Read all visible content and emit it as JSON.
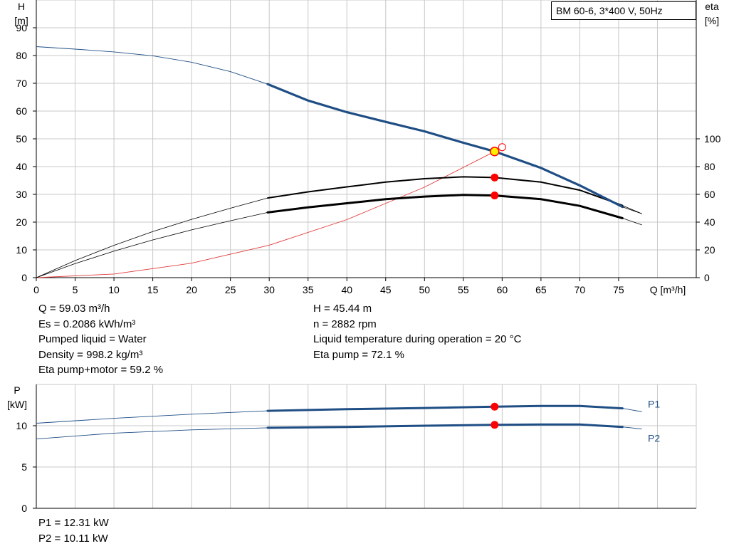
{
  "title": "BM 60-6, 3*400 V, 50Hz",
  "info": {
    "left": [
      "Q = 59.03 m³/h",
      "Es = 0.2086 kWh/m³",
      "Pumped liquid = Water",
      "Density = 998.2 kg/m³",
      "Eta pump+motor = 59.2 %"
    ],
    "right": [
      "H = 45.44 m",
      "n = 2882 rpm",
      "Liquid temperature during operation = 20 °C",
      "Eta pump = 72.1 %"
    ],
    "power": [
      "P1 = 12.31 kW",
      "P2 = 10.11 kW"
    ]
  },
  "colors": {
    "curve": "#1f4e85",
    "system": "#e23b3b",
    "point": "#ff0000",
    "duty": "#ffee00",
    "grid": "#c8c8c8"
  },
  "chart_data": [
    {
      "type": "line",
      "name": "performance",
      "xlabel": "Q [m³/h]",
      "ylabel": [
        "H",
        "[m]"
      ],
      "y2label": [
        "eta",
        "[%]"
      ],
      "xlim": [
        0,
        85
      ],
      "ylim": [
        0,
        100
      ],
      "y2lim": [
        0,
        200
      ],
      "x_ticks": [
        0,
        5,
        10,
        15,
        20,
        25,
        30,
        35,
        40,
        45,
        50,
        55,
        60,
        65,
        70,
        75
      ],
      "y_ticks": [
        0,
        10,
        20,
        30,
        40,
        50,
        60,
        70,
        80,
        90
      ],
      "y2_ticks": [
        0,
        20,
        40,
        60,
        80,
        100
      ],
      "grid": true,
      "operating_range": [
        29.8,
        75.5
      ],
      "head_curve": {
        "x": [
          0,
          5,
          10,
          15,
          20,
          25,
          29.8,
          35,
          40,
          45,
          50,
          55,
          59.03,
          65,
          70,
          75.5
        ],
        "y": [
          83.2,
          82.3,
          81.3,
          79.9,
          77.6,
          74.2,
          69.7,
          63.8,
          59.6,
          56.1,
          52.7,
          48.6,
          45.44,
          39.5,
          33.2,
          25.5
        ]
      },
      "eta_pump_curve": {
        "x": [
          0,
          5,
          10,
          15,
          20,
          25,
          29.8,
          35,
          40,
          45,
          50,
          55,
          59.03,
          65,
          70,
          75.5,
          78
        ],
        "y": [
          0,
          12.3,
          23.3,
          33.2,
          42.0,
          50.0,
          57.4,
          61.8,
          65.4,
          68.8,
          71.3,
          72.6,
          72.1,
          68.8,
          63.0,
          52.0,
          46.0
        ]
      },
      "eta_total_curve": {
        "x": [
          0,
          5,
          10,
          15,
          20,
          25,
          29.8,
          35,
          40,
          45,
          50,
          55,
          59.03,
          65,
          70,
          75.5,
          78
        ],
        "y": [
          0,
          10.1,
          19.1,
          27.2,
          34.4,
          41.0,
          47.0,
          50.6,
          53.6,
          56.5,
          58.4,
          59.6,
          59.2,
          56.5,
          51.7,
          42.8,
          38.0
        ]
      },
      "system_curve": {
        "x": [
          0,
          10,
          20,
          30,
          40,
          50,
          59.03
        ],
        "y": [
          0,
          1.3,
          5.2,
          11.7,
          20.9,
          32.6,
          45.44
        ]
      },
      "extended_head": {
        "x": [
          75.5,
          78
        ],
        "y": [
          25.5,
          23.0
        ]
      },
      "duty_point": {
        "x": 59.03,
        "y": 45.44
      },
      "requested_point": {
        "x": 60.0,
        "y": 47.0
      },
      "eta_points": [
        {
          "x": 59.03,
          "y": 72.1
        },
        {
          "x": 59.03,
          "y": 59.2
        }
      ]
    },
    {
      "type": "line",
      "name": "power",
      "ylabel": [
        "P",
        "[kW]"
      ],
      "xlim": [
        0,
        85
      ],
      "ylim": [
        0,
        15
      ],
      "y_ticks": [
        0,
        5,
        10
      ],
      "grid": true,
      "operating_range": [
        29.8,
        75.5
      ],
      "series": [
        {
          "name": "P1",
          "x": [
            0,
            10,
            20,
            29.8,
            40,
            50,
            59.03,
            65,
            70,
            75.5,
            78
          ],
          "y": [
            10.3,
            10.9,
            11.4,
            11.8,
            12.0,
            12.15,
            12.31,
            12.4,
            12.4,
            12.1,
            11.7
          ]
        },
        {
          "name": "P2",
          "x": [
            0,
            10,
            20,
            29.8,
            40,
            50,
            59.03,
            65,
            70,
            75.5,
            78
          ],
          "y": [
            8.4,
            9.1,
            9.5,
            9.75,
            9.85,
            10.0,
            10.11,
            10.15,
            10.15,
            9.85,
            9.6
          ]
        }
      ],
      "points": [
        {
          "x": 59.03,
          "y": 12.31
        },
        {
          "x": 59.03,
          "y": 10.11
        }
      ]
    }
  ]
}
